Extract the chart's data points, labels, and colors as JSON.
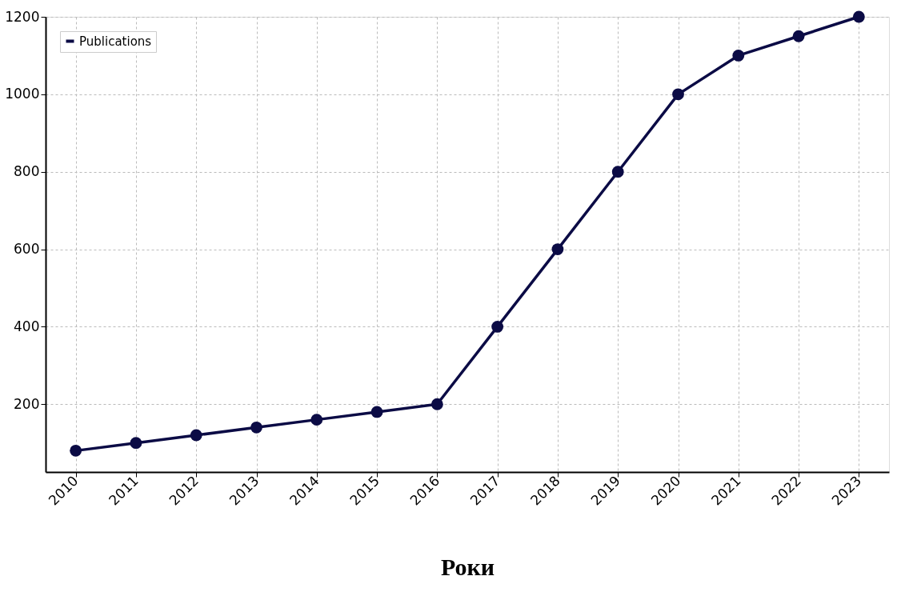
{
  "chart_data": {
    "type": "line",
    "xlabel": "Роки",
    "categories": [
      "2010",
      "2011",
      "2012",
      "2013",
      "2014",
      "2015",
      "2016",
      "2017",
      "2018",
      "2019",
      "2020",
      "2021",
      "2022",
      "2023"
    ],
    "series": [
      {
        "name": "Publications",
        "color": "#0b0b45",
        "values": [
          80,
          100,
          120,
          140,
          160,
          180,
          200,
          400,
          600,
          800,
          1000,
          1100,
          1150,
          1200
        ]
      }
    ],
    "ylim": [
      25,
      1200
    ],
    "yticks": [
      200,
      400,
      600,
      800,
      1000,
      1200
    ],
    "grid": true,
    "legend": "top left",
    "marker": "circle",
    "line_style": "solid"
  }
}
